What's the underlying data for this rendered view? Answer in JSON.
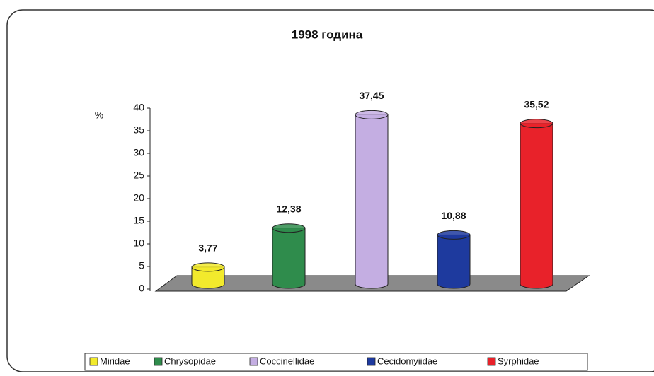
{
  "chart_data": {
    "type": "bar",
    "title": "1998 година",
    "y_label": "%",
    "categories": [
      "Miridae",
      "Chrysopidae",
      "Coccinellidae",
      "Cecidomyiidae",
      "Syrphidae"
    ],
    "values": [
      3.77,
      12.38,
      37.45,
      10.88,
      35.52
    ],
    "value_labels": [
      "3,77",
      "12,38",
      "37,45",
      "10,88",
      "35,52"
    ],
    "colors": [
      "#f2ea2c",
      "#2f8c4c",
      "#c4aee2",
      "#1e3a9e",
      "#e8222a"
    ],
    "ylim": [
      0,
      40
    ],
    "yticks": [
      0,
      5,
      10,
      15,
      20,
      25,
      30,
      35,
      40
    ],
    "grid": false
  }
}
